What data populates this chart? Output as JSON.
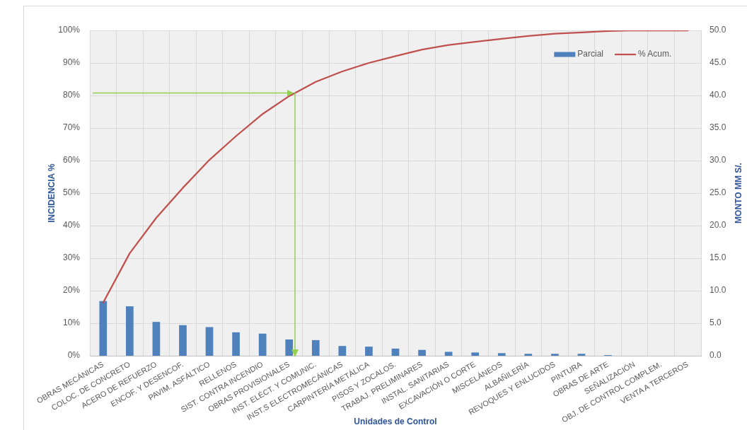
{
  "chart_data": {
    "type": "bar",
    "xlabel": "Unidades de Control",
    "ylabel": "INCIDENCIA %",
    "y2label": "MONTO MM S/.",
    "categories": [
      "OBRAS MECÁNICAS",
      "COLOC. DE CONCRETO",
      "ACERO DE REFUERZO",
      "ENCOF. Y DESENCOF.",
      "PAVIM. ASFÁLTICO",
      "RELLENOS",
      "SIST. CONTRA INCENDIO",
      "OBRAS PROVISIONALES",
      "INST. ELÉCT. Y COMUNIC.",
      "INST.S ELECTROMECÁNICAS",
      "CARPINTERÍA METÁLICA",
      "PISOS Y ZOCALOS.",
      "TRABAJ. PRELIMINARES",
      "INSTAL. SANITARIAS",
      "EXCAVACIÓN O CORTE",
      "MISCELÁNEOS",
      "ALBAÑILERÍA",
      "REVOQUES Y ENLUCIDOS",
      "PINTURA",
      "OBRAS DE ARTE",
      "SEÑALIZACIÓN",
      "OBJ. DE CONTROL COMPLEM.",
      "VENTA A TERCEROS"
    ],
    "series": [
      {
        "name": "Parcial",
        "axis": "y2",
        "color": "#4f81bd",
        "values": [
          8.4,
          7.6,
          5.2,
          4.7,
          4.4,
          3.6,
          3.4,
          2.5,
          2.4,
          1.5,
          1.4,
          1.1,
          0.9,
          0.6,
          0.5,
          0.4,
          0.3,
          0.3,
          0.3,
          0.1,
          0,
          0,
          0
        ]
      },
      {
        "name": "% Acum.",
        "type": "line",
        "axis": "y",
        "color": "#c0504d",
        "values": [
          16.3,
          31.5,
          42.4,
          51.6,
          60.2,
          67.5,
          74.3,
          79.8,
          84.2,
          87.4,
          90.0,
          92.1,
          94.1,
          95.5,
          96.5,
          97.4,
          98.3,
          99.0,
          99.4,
          99.8,
          100,
          100,
          100
        ]
      }
    ],
    "ylim": [
      0,
      100
    ],
    "yticks": [
      {
        "value": 0,
        "label": "0%"
      },
      {
        "value": 10,
        "label": "10%"
      },
      {
        "value": 20,
        "label": "20%"
      },
      {
        "value": 30,
        "label": "30%"
      },
      {
        "value": 40,
        "label": "40%"
      },
      {
        "value": 50,
        "label": "50%"
      },
      {
        "value": 60,
        "label": "60%"
      },
      {
        "value": 70,
        "label": "70%"
      },
      {
        "value": 80,
        "label": "80%"
      },
      {
        "value": 90,
        "label": "90%"
      },
      {
        "value": 100,
        "label": "100%"
      }
    ],
    "y2lim": [
      0,
      50
    ],
    "y2ticks": [
      {
        "value": 0,
        "label": "0.0"
      },
      {
        "value": 5,
        "label": "5.0"
      },
      {
        "value": 10,
        "label": "10.0"
      },
      {
        "value": 15,
        "label": "15.0"
      },
      {
        "value": 20,
        "label": "20.0"
      },
      {
        "value": 25,
        "label": "25.0"
      },
      {
        "value": 30,
        "label": "30.0"
      },
      {
        "value": 35,
        "label": "35.0"
      },
      {
        "value": 40,
        "label": "40.0"
      },
      {
        "value": 45,
        "label": "45.0"
      },
      {
        "value": 50,
        "label": "50.0"
      }
    ],
    "grid": true,
    "legend": "top right",
    "marker": "none"
  }
}
